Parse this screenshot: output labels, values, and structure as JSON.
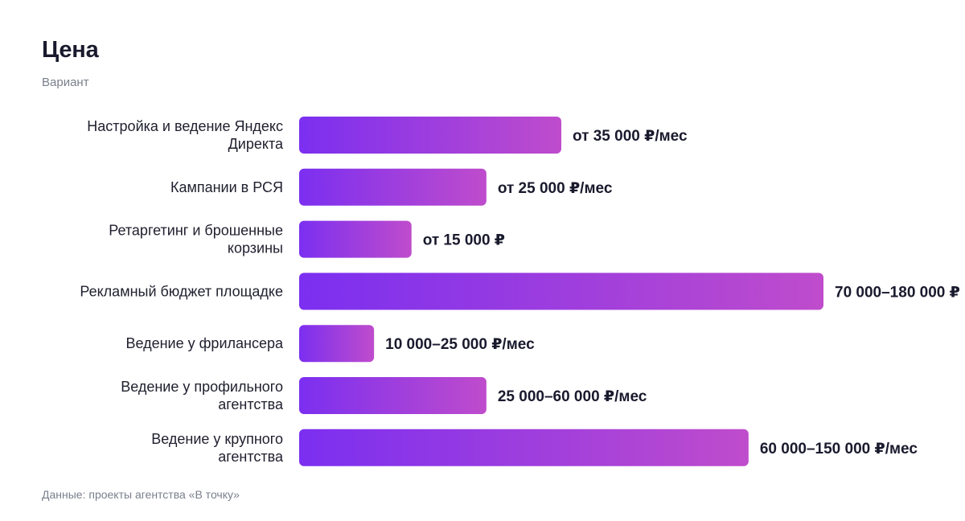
{
  "chart_data": {
    "type": "bar",
    "orientation": "horizontal",
    "title": "Цена",
    "subtitle": "Вариант",
    "source": "Данные: проекты агентства «В точку»",
    "categories": [
      "Настройка и ведение Яндекс Директа",
      "Кампании в РСЯ",
      "Ретаргетинг и брошенные корзины",
      "Рекламный бюджет площадке",
      "Ведение у фрилансера",
      "Ведение у профильного агентства",
      "Ведение у крупного агентства"
    ],
    "values": [
      35000,
      25000,
      15000,
      70000,
      10000,
      25000,
      60000
    ],
    "value_labels": [
      "от 35 000 ₽/мес",
      "от 25 000 ₽/мес",
      "от 15 000 ₽",
      "70 000–180 000 ₽",
      "10 000–25 000 ₽/мес",
      "25 000–60 000 ₽/мес",
      "60 000–150 000 ₽/мес"
    ],
    "xlim": [
      0,
      70000
    ],
    "grid": false,
    "legend": "none",
    "colors": {
      "bar_start": "#7b2ff0",
      "bar_end": "#bf4ccc"
    }
  }
}
